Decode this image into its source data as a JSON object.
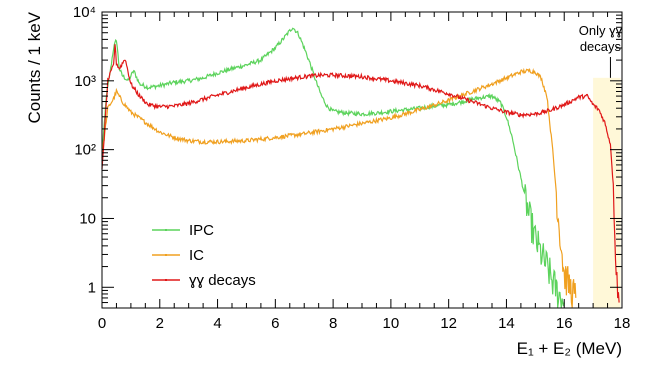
{
  "chart_data": {
    "type": "line",
    "title": "",
    "xlabel": "E₁ + E₂  (MeV)",
    "ylabel": "Counts / 1 keV",
    "xlim": [
      0,
      18
    ],
    "ylim": [
      0.5,
      10000
    ],
    "y_scale": "log",
    "grid": false,
    "legend_position": "bottom-left",
    "x_ticks": [
      "0",
      "2",
      "4",
      "6",
      "8",
      "10",
      "12",
      "14",
      "16",
      "18"
    ],
    "y_ticks": [
      {
        "value": 1,
        "label": "1"
      },
      {
        "value": 10,
        "label": "10"
      },
      {
        "value": 100,
        "label": "10²"
      },
      {
        "value": 1000,
        "label": "10³"
      },
      {
        "value": 10000,
        "label": "10⁴"
      }
    ],
    "annotation": {
      "lines": [
        "Only ɣɣ",
        "decays"
      ],
      "x": 17.6,
      "region_x": [
        17.0,
        17.95
      ],
      "region_color": "#fff8d8"
    },
    "series": [
      {
        "name": "IPC",
        "color": "#5cd35c",
        "x": [
          0,
          0.15,
          0.3,
          0.4,
          0.5,
          0.6,
          0.7,
          0.9,
          1.1,
          1.3,
          1.6,
          2,
          2.5,
          3,
          3.5,
          4,
          4.5,
          5,
          5.5,
          6,
          6.3,
          6.6,
          6.8,
          7,
          7.2,
          7.4,
          7.6,
          7.8,
          8,
          8.5,
          9,
          9.5,
          10,
          10.5,
          11,
          11.5,
          12,
          12.5,
          13,
          13.5,
          13.8,
          14,
          14.2,
          14.4,
          14.6,
          14.8,
          15,
          15.2,
          15.4,
          15.6,
          15.8,
          16
        ],
        "y": [
          80,
          600,
          1500,
          3000,
          4000,
          1500,
          1200,
          1000,
          1400,
          900,
          800,
          850,
          950,
          1000,
          1100,
          1300,
          1500,
          1700,
          2000,
          3000,
          4200,
          6000,
          4800,
          3000,
          1800,
          1000,
          600,
          420,
          360,
          340,
          330,
          340,
          360,
          380,
          400,
          430,
          450,
          500,
          560,
          600,
          480,
          300,
          150,
          60,
          25,
          10,
          5,
          3,
          2,
          1.2,
          0.8,
          0.6
        ]
      },
      {
        "name": "IC",
        "color": "#f0a020",
        "x": [
          0,
          0.2,
          0.4,
          0.5,
          0.7,
          1,
          1.5,
          2,
          2.5,
          3,
          3.5,
          4,
          5,
          6,
          7,
          8,
          9,
          10,
          11,
          12,
          13,
          13.5,
          14,
          14.5,
          14.8,
          15,
          15.2,
          15.4,
          15.6,
          15.8,
          16,
          16.2,
          16.4
        ],
        "y": [
          80,
          400,
          550,
          700,
          500,
          350,
          250,
          180,
          150,
          135,
          130,
          130,
          135,
          150,
          170,
          200,
          240,
          290,
          380,
          520,
          750,
          900,
          1100,
          1350,
          1400,
          1350,
          1100,
          600,
          100,
          10,
          1.5,
          1,
          0.7
        ]
      },
      {
        "name": "ɣɣ decays",
        "color": "#e01818",
        "x": [
          0,
          0.2,
          0.4,
          0.45,
          0.5,
          0.6,
          0.8,
          1,
          1.3,
          1.6,
          2,
          2.5,
          3,
          4,
          5,
          6,
          7,
          7.5,
          8,
          9,
          10,
          11,
          12,
          12.5,
          13,
          13.5,
          14,
          14.5,
          15,
          15.5,
          16,
          16.5,
          16.8,
          17,
          17.2,
          17.4,
          17.6,
          17.7,
          17.8,
          17.9
        ],
        "y": [
          50,
          1000,
          1700,
          3500,
          1800,
          1500,
          2100,
          900,
          600,
          450,
          420,
          430,
          470,
          620,
          800,
          1000,
          1150,
          1200,
          1210,
          1150,
          1000,
          850,
          650,
          550,
          470,
          400,
          350,
          320,
          330,
          370,
          450,
          580,
          600,
          450,
          380,
          250,
          120,
          30,
          2,
          0.6
        ]
      }
    ]
  }
}
